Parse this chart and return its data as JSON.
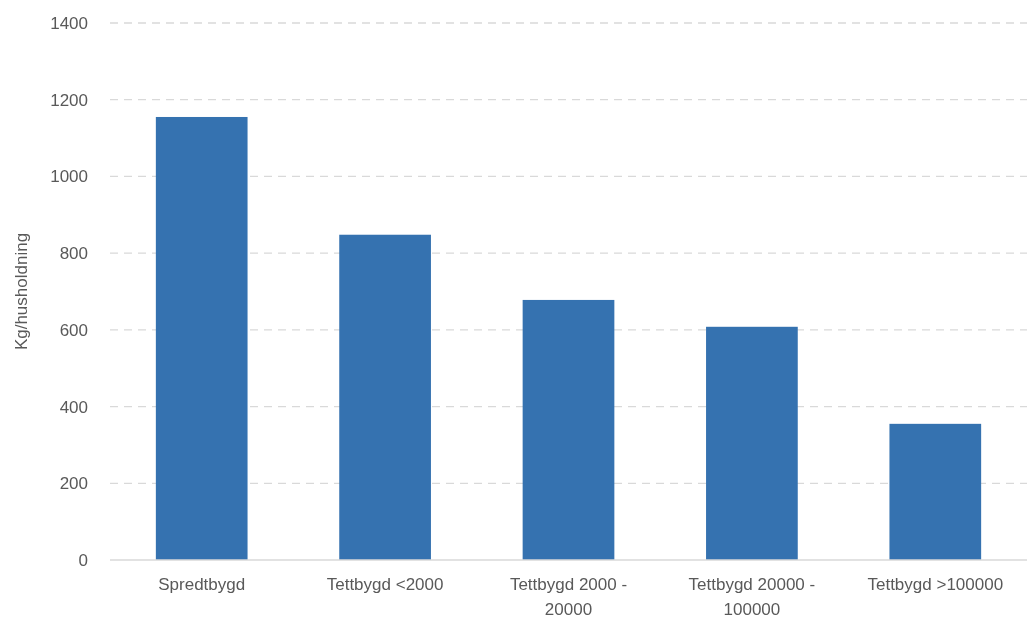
{
  "chart_data": {
    "type": "bar",
    "ylabel": "Kg/husholdning",
    "categories": [
      "Spredtbygd",
      "Tettbygd <2000",
      "Tettbygd 2000 - 20000",
      "Tettbygd 20000 - 100000",
      "Tettbygd >100000"
    ],
    "values": [
      1155,
      848,
      678,
      608,
      355
    ],
    "color": "#3572b0",
    "ylim": [
      0,
      1400
    ],
    "yticks": [
      0,
      200,
      400,
      600,
      800,
      1000,
      1200,
      1400
    ],
    "grid": "y"
  }
}
